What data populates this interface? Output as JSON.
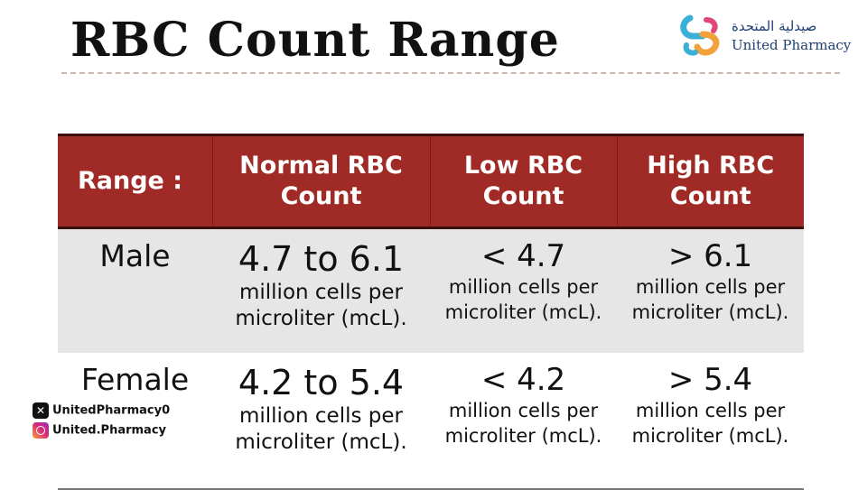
{
  "title": "RBC Count Range",
  "logo": {
    "arabic": "صيدلية المتحدة",
    "english": "United Pharmacy",
    "primary_color": "#1e3f73",
    "accent_colors": [
      "#f2a23a",
      "#3ab0d6",
      "#e0457b"
    ]
  },
  "table": {
    "header_color": "#9f2a26",
    "headers": [
      "Range :",
      "Normal RBC Count",
      "Low RBC Count",
      "High RBC Count"
    ],
    "rows": [
      {
        "label": "Male",
        "normal": {
          "value": "4.7 to 6.1",
          "unit": "million cells per microliter (mcL)."
        },
        "low": {
          "value": "< 4.7",
          "unit": "million cells per microliter (mcL)."
        },
        "high": {
          "value": "> 6.1",
          "unit": "million cells per microliter (mcL)."
        }
      },
      {
        "label": "Female",
        "normal": {
          "value": "4.2 to 5.4",
          "unit": "million cells per microliter (mcL)."
        },
        "low": {
          "value": "< 4.2",
          "unit": "million cells per microliter (mcL)."
        },
        "high": {
          "value": "> 5.4",
          "unit": "million cells per microliter (mcL)."
        }
      }
    ]
  },
  "social": {
    "x_handle": "UnitedPharmacy0",
    "instagram_handle": "United.Pharmacy",
    "x_icon": "x-logo-icon",
    "instagram_icon": "instagram-icon"
  }
}
